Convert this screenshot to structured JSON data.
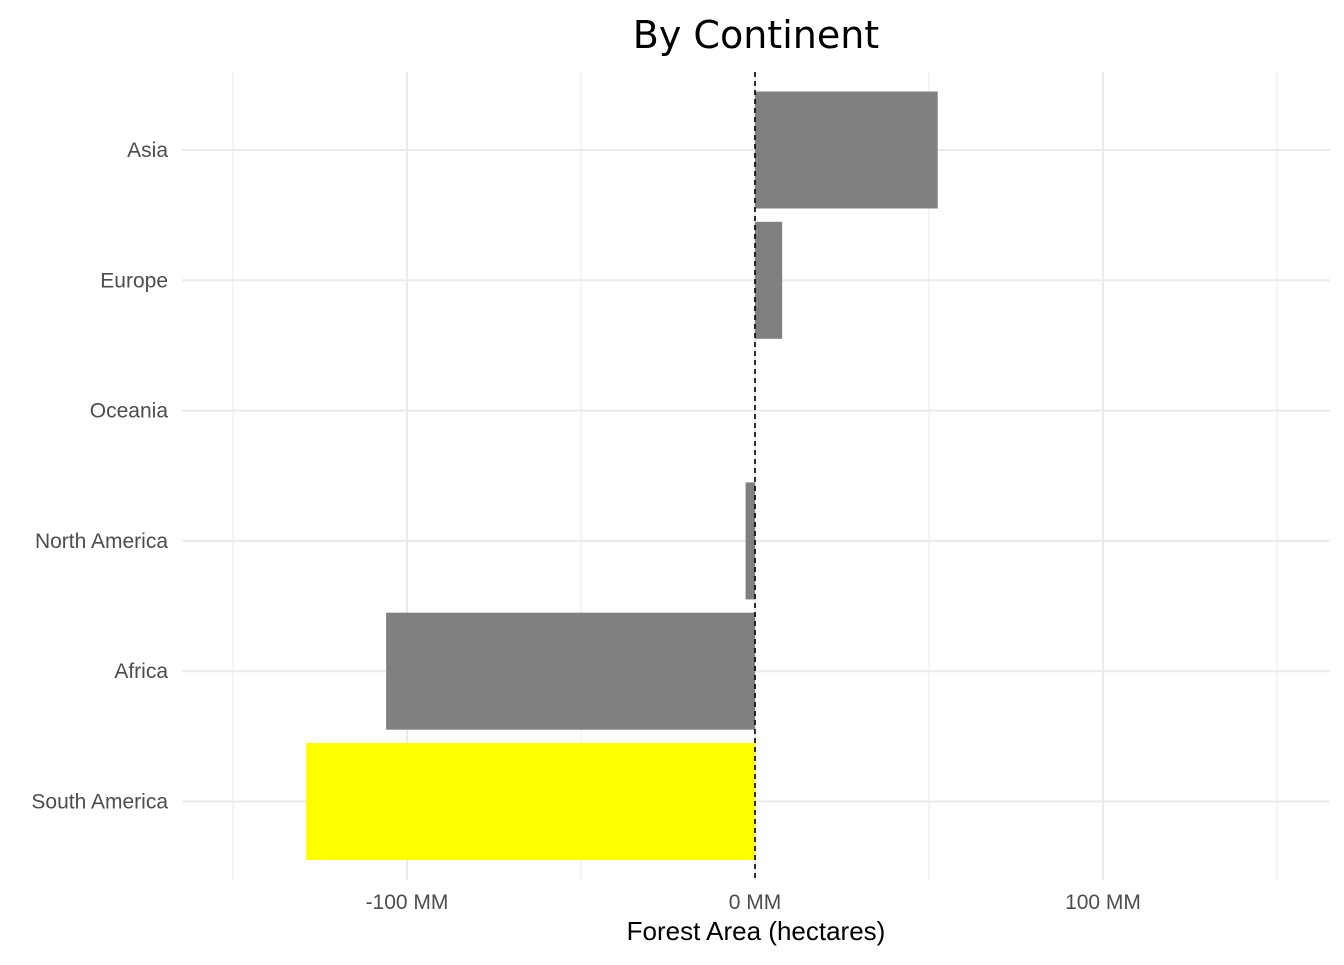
{
  "chart_data": {
    "type": "bar",
    "orientation": "horizontal",
    "title": "By Continent",
    "xlabel": "Forest Area (hectares)",
    "ylabel": "",
    "categories": [
      "Asia",
      "Europe",
      "Oceania",
      "North America",
      "Africa",
      "South America"
    ],
    "values": [
      52500000,
      7800000,
      0,
      -2700000,
      -106000000,
      -129000000
    ],
    "highlight": "South America",
    "xlim": [
      -150000000,
      165000000
    ],
    "x_ticks": [
      {
        "value": -100000000,
        "label": "-100 MM"
      },
      {
        "value": 0,
        "label": "0 MM"
      },
      {
        "value": 100000000,
        "label": "100 MM"
      }
    ],
    "x_minor_grid": [
      -150000000,
      -50000000,
      50000000,
      150000000
    ],
    "reference_line": {
      "value": 0,
      "style": "dashed"
    },
    "grid": true,
    "legend": "none",
    "colors": {
      "bar": "#808080",
      "highlight": "#ffff00",
      "grid": "#ebebeb",
      "reference_line": "#000000"
    }
  }
}
